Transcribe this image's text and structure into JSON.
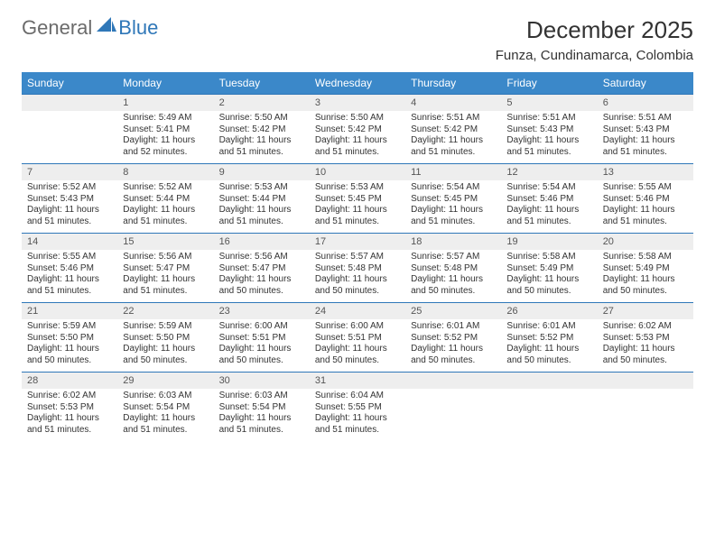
{
  "logo": {
    "general": "General",
    "blue": "Blue"
  },
  "title": "December 2025",
  "location": "Funza, Cundinamarca, Colombia",
  "colors": {
    "header_bg": "#3b88c9",
    "header_text": "#ffffff",
    "row_border": "#2f77b8",
    "daynum_bg": "#eeeeee",
    "body_text": "#333333",
    "logo_gray": "#6b6b6b",
    "logo_blue": "#2f77b8"
  },
  "weekdays": [
    "Sunday",
    "Monday",
    "Tuesday",
    "Wednesday",
    "Thursday",
    "Friday",
    "Saturday"
  ],
  "weeks": [
    [
      null,
      {
        "n": "1",
        "sr": "Sunrise: 5:49 AM",
        "ss": "Sunset: 5:41 PM",
        "dl": "Daylight: 11 hours and 52 minutes."
      },
      {
        "n": "2",
        "sr": "Sunrise: 5:50 AM",
        "ss": "Sunset: 5:42 PM",
        "dl": "Daylight: 11 hours and 51 minutes."
      },
      {
        "n": "3",
        "sr": "Sunrise: 5:50 AM",
        "ss": "Sunset: 5:42 PM",
        "dl": "Daylight: 11 hours and 51 minutes."
      },
      {
        "n": "4",
        "sr": "Sunrise: 5:51 AM",
        "ss": "Sunset: 5:42 PM",
        "dl": "Daylight: 11 hours and 51 minutes."
      },
      {
        "n": "5",
        "sr": "Sunrise: 5:51 AM",
        "ss": "Sunset: 5:43 PM",
        "dl": "Daylight: 11 hours and 51 minutes."
      },
      {
        "n": "6",
        "sr": "Sunrise: 5:51 AM",
        "ss": "Sunset: 5:43 PM",
        "dl": "Daylight: 11 hours and 51 minutes."
      }
    ],
    [
      {
        "n": "7",
        "sr": "Sunrise: 5:52 AM",
        "ss": "Sunset: 5:43 PM",
        "dl": "Daylight: 11 hours and 51 minutes."
      },
      {
        "n": "8",
        "sr": "Sunrise: 5:52 AM",
        "ss": "Sunset: 5:44 PM",
        "dl": "Daylight: 11 hours and 51 minutes."
      },
      {
        "n": "9",
        "sr": "Sunrise: 5:53 AM",
        "ss": "Sunset: 5:44 PM",
        "dl": "Daylight: 11 hours and 51 minutes."
      },
      {
        "n": "10",
        "sr": "Sunrise: 5:53 AM",
        "ss": "Sunset: 5:45 PM",
        "dl": "Daylight: 11 hours and 51 minutes."
      },
      {
        "n": "11",
        "sr": "Sunrise: 5:54 AM",
        "ss": "Sunset: 5:45 PM",
        "dl": "Daylight: 11 hours and 51 minutes."
      },
      {
        "n": "12",
        "sr": "Sunrise: 5:54 AM",
        "ss": "Sunset: 5:46 PM",
        "dl": "Daylight: 11 hours and 51 minutes."
      },
      {
        "n": "13",
        "sr": "Sunrise: 5:55 AM",
        "ss": "Sunset: 5:46 PM",
        "dl": "Daylight: 11 hours and 51 minutes."
      }
    ],
    [
      {
        "n": "14",
        "sr": "Sunrise: 5:55 AM",
        "ss": "Sunset: 5:46 PM",
        "dl": "Daylight: 11 hours and 51 minutes."
      },
      {
        "n": "15",
        "sr": "Sunrise: 5:56 AM",
        "ss": "Sunset: 5:47 PM",
        "dl": "Daylight: 11 hours and 51 minutes."
      },
      {
        "n": "16",
        "sr": "Sunrise: 5:56 AM",
        "ss": "Sunset: 5:47 PM",
        "dl": "Daylight: 11 hours and 50 minutes."
      },
      {
        "n": "17",
        "sr": "Sunrise: 5:57 AM",
        "ss": "Sunset: 5:48 PM",
        "dl": "Daylight: 11 hours and 50 minutes."
      },
      {
        "n": "18",
        "sr": "Sunrise: 5:57 AM",
        "ss": "Sunset: 5:48 PM",
        "dl": "Daylight: 11 hours and 50 minutes."
      },
      {
        "n": "19",
        "sr": "Sunrise: 5:58 AM",
        "ss": "Sunset: 5:49 PM",
        "dl": "Daylight: 11 hours and 50 minutes."
      },
      {
        "n": "20",
        "sr": "Sunrise: 5:58 AM",
        "ss": "Sunset: 5:49 PM",
        "dl": "Daylight: 11 hours and 50 minutes."
      }
    ],
    [
      {
        "n": "21",
        "sr": "Sunrise: 5:59 AM",
        "ss": "Sunset: 5:50 PM",
        "dl": "Daylight: 11 hours and 50 minutes."
      },
      {
        "n": "22",
        "sr": "Sunrise: 5:59 AM",
        "ss": "Sunset: 5:50 PM",
        "dl": "Daylight: 11 hours and 50 minutes."
      },
      {
        "n": "23",
        "sr": "Sunrise: 6:00 AM",
        "ss": "Sunset: 5:51 PM",
        "dl": "Daylight: 11 hours and 50 minutes."
      },
      {
        "n": "24",
        "sr": "Sunrise: 6:00 AM",
        "ss": "Sunset: 5:51 PM",
        "dl": "Daylight: 11 hours and 50 minutes."
      },
      {
        "n": "25",
        "sr": "Sunrise: 6:01 AM",
        "ss": "Sunset: 5:52 PM",
        "dl": "Daylight: 11 hours and 50 minutes."
      },
      {
        "n": "26",
        "sr": "Sunrise: 6:01 AM",
        "ss": "Sunset: 5:52 PM",
        "dl": "Daylight: 11 hours and 50 minutes."
      },
      {
        "n": "27",
        "sr": "Sunrise: 6:02 AM",
        "ss": "Sunset: 5:53 PM",
        "dl": "Daylight: 11 hours and 50 minutes."
      }
    ],
    [
      {
        "n": "28",
        "sr": "Sunrise: 6:02 AM",
        "ss": "Sunset: 5:53 PM",
        "dl": "Daylight: 11 hours and 51 minutes."
      },
      {
        "n": "29",
        "sr": "Sunrise: 6:03 AM",
        "ss": "Sunset: 5:54 PM",
        "dl": "Daylight: 11 hours and 51 minutes."
      },
      {
        "n": "30",
        "sr": "Sunrise: 6:03 AM",
        "ss": "Sunset: 5:54 PM",
        "dl": "Daylight: 11 hours and 51 minutes."
      },
      {
        "n": "31",
        "sr": "Sunrise: 6:04 AM",
        "ss": "Sunset: 5:55 PM",
        "dl": "Daylight: 11 hours and 51 minutes."
      },
      null,
      null,
      null
    ]
  ]
}
